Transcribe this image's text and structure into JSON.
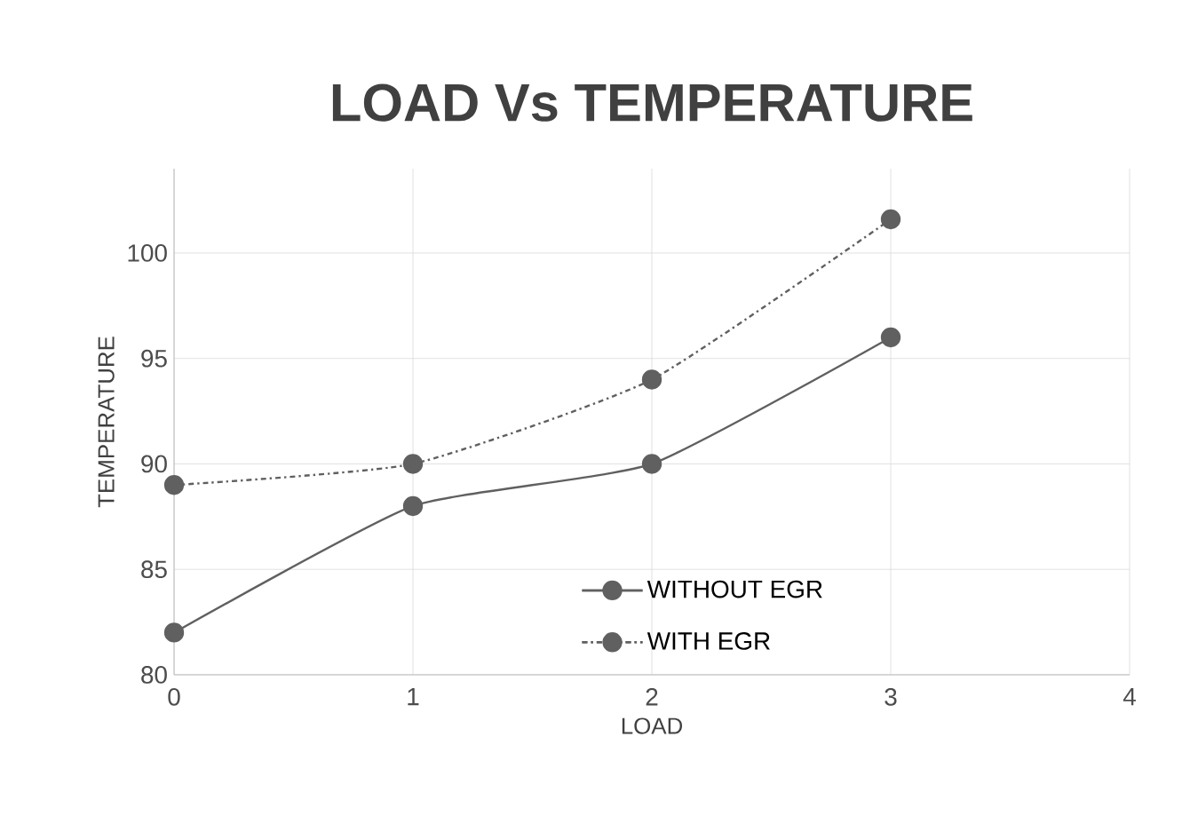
{
  "chart_data": {
    "type": "line",
    "title": "LOAD Vs TEMPERATURE",
    "xlabel": "LOAD",
    "ylabel": "TEMPERATURE",
    "x": [
      0,
      1,
      2,
      3
    ],
    "series": [
      {
        "name": "WITHOUT EGR",
        "color": "#606060",
        "values": [
          82,
          88,
          90,
          96
        ],
        "line_style": "solid"
      },
      {
        "name": "WITH EGR",
        "color": "#606060",
        "values": [
          89,
          90,
          94,
          101.6
        ],
        "line_style": "dashed"
      }
    ],
    "xlim": [
      0,
      4
    ],
    "xticks": [
      0,
      1,
      2,
      3,
      4
    ],
    "ylim": [
      80,
      104
    ],
    "yticks": [
      80,
      85,
      90,
      95,
      100
    ],
    "grid": true,
    "legend": "bottom right",
    "marker": "circle"
  }
}
